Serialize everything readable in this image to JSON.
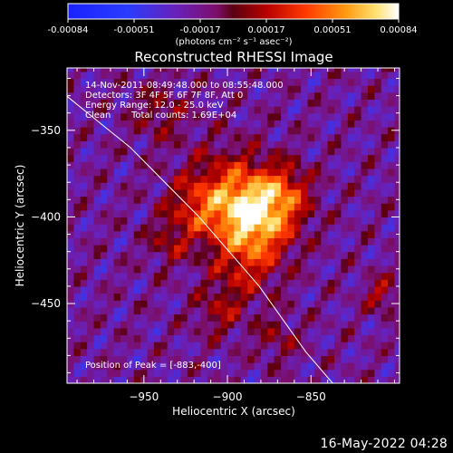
{
  "colorbar": {
    "ticks": [
      "-0.00084",
      "-0.00051",
      "-0.00017",
      "0.00017",
      "0.00051",
      "0.00084"
    ],
    "unit_label": "(photons cm⁻² s⁻¹ asec⁻²)",
    "range": [
      -0.00084,
      0.00084
    ]
  },
  "header": {
    "time_range": "14-Nov-2011 08:49:48.000 to 08:55:48.000",
    "detectors": "Detectors: 3F 4F 5F 6F 7F 8F, Att 0",
    "energy": "Energy Range: 12.0 - 25.0 keV",
    "method": "Clean",
    "counts": "Total counts: 1.69E+04"
  },
  "peak_label": "Position of Peak = [-883,-400]",
  "footer_date": "16-May-2022 04:28",
  "colors": {
    "background": "#000000",
    "axes": "#ffffff"
  },
  "chart_data": {
    "type": "heatmap",
    "title": "Reconstructed RHESSI Image",
    "xlabel": "Heliocentric X (arcsec)",
    "ylabel": "Heliocentric Y (arcsec)",
    "xlim": [
      -996,
      -797
    ],
    "ylim": [
      -496,
      -314
    ],
    "xticks": [
      -950,
      -900,
      -850
    ],
    "xtick_labels": [
      "−950",
      "−900",
      "−850"
    ],
    "yticks": [
      -450,
      -400,
      -350
    ],
    "ytick_labels": [
      "−450",
      "−400",
      "−350"
    ],
    "peak": [
      -883,
      -400
    ],
    "sources": [
      {
        "x": -883,
        "y": -400,
        "sigma": 16,
        "amp": 0.00084
      },
      {
        "x": -900,
        "y": -385,
        "sigma": 18,
        "amp": 0.0004
      },
      {
        "x": -920,
        "y": -395,
        "sigma": 12,
        "amp": 0.0003
      },
      {
        "x": -865,
        "y": -385,
        "sigma": 11,
        "amp": 0.00035
      },
      {
        "x": -890,
        "y": -430,
        "sigma": 14,
        "amp": 0.0003
      },
      {
        "x": -940,
        "y": -340,
        "sigma": 12,
        "amp": 0.00022
      },
      {
        "x": -905,
        "y": -455,
        "sigma": 10,
        "amp": 0.00026
      },
      {
        "x": -870,
        "y": -470,
        "sigma": 9,
        "amp": 0.00022
      },
      {
        "x": -808,
        "y": -444,
        "sigma": 7,
        "amp": 0.00032
      },
      {
        "x": -935,
        "y": -415,
        "sigma": 9,
        "amp": 0.00024
      }
    ],
    "limb_curve": [
      [
        -1017,
        -314
      ],
      [
        -958,
        -360
      ],
      [
        -917,
        -400
      ],
      [
        -881,
        -440
      ],
      [
        -853,
        -478
      ],
      [
        -837,
        -496
      ]
    ],
    "background_level": -0.0002,
    "noise_amplitude": 0.00028
  }
}
